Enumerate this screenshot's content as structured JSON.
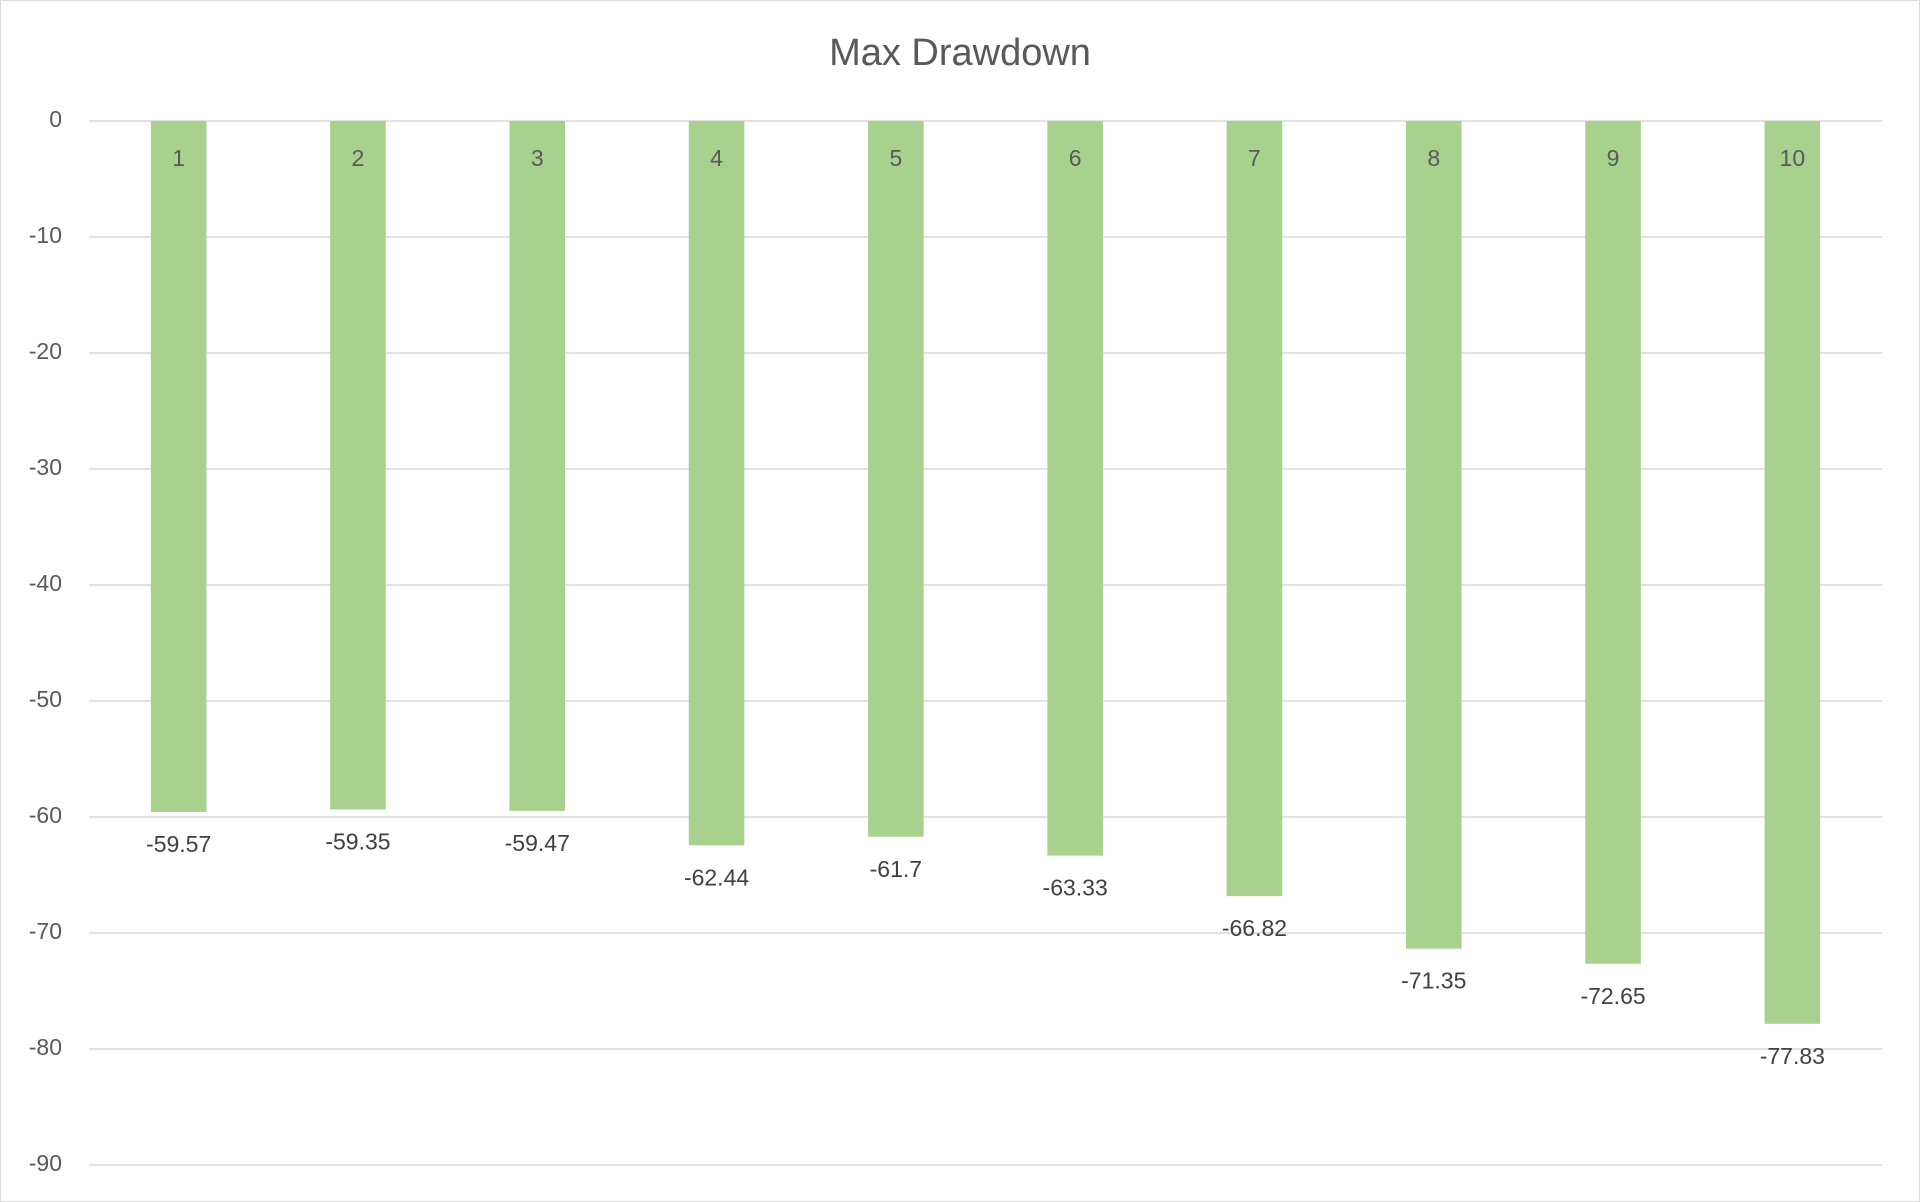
{
  "chart_data": {
    "type": "bar",
    "title": "Max Drawdown",
    "categories": [
      "1",
      "2",
      "3",
      "4",
      "5",
      "6",
      "7",
      "8",
      "9",
      "10"
    ],
    "values": [
      -59.57,
      -59.35,
      -59.47,
      -62.44,
      -61.7,
      -63.33,
      -66.82,
      -71.35,
      -72.65,
      -77.83
    ],
    "color": "#a9d18e",
    "ylim": [
      -90,
      0
    ],
    "yticks": [
      0,
      -10,
      -20,
      -30,
      -40,
      -50,
      -60,
      -70,
      -80,
      -90
    ],
    "grid": true
  }
}
